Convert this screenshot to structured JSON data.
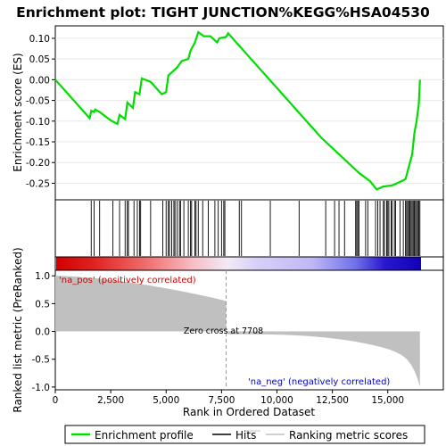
{
  "chart_data": {
    "type": "line",
    "title": "Enrichment plot: TIGHT JUNCTION%KEGG%HSA04530",
    "xlabel": "Rank in Ordered Dataset",
    "ylabel_top": "Enrichment score (ES)",
    "ylabel_bottom": "Ranked list metric (PreRanked)",
    "xlim": [
      0,
      16500
    ],
    "ylim_top": [
      -0.29,
      0.13
    ],
    "ylim_bottom": [
      -1.05,
      1.1
    ],
    "x_ticks": [
      0,
      2500,
      5000,
      7500,
      10000,
      12500,
      15000
    ],
    "x_tick_labels": [
      "0",
      "2,500",
      "5,000",
      "7,500",
      "10,000",
      "12,500",
      "15,000"
    ],
    "y_ticks_top": [
      0.1,
      0.05,
      0.0,
      -0.05,
      -0.1,
      -0.15,
      -0.2,
      -0.25
    ],
    "y_tick_labels_top": [
      "0.10",
      "0.05",
      "0.00",
      "-0.05",
      "-0.10",
      "-0.15",
      "-0.20",
      "-0.25"
    ],
    "y_ticks_bottom": [
      1.0,
      0.5,
      0.0,
      -0.5,
      -1.0
    ],
    "y_tick_labels_bottom": [
      "1.0",
      "0.5",
      "0.0",
      "-0.5",
      "-1.0"
    ],
    "annotations": {
      "pos": "'na_pos' (positively correlated)",
      "neg": "'na_neg' (negatively correlated)",
      "zero_cross": "Zero cross at 7708"
    },
    "zero_cross": 7708,
    "legend": [
      "Enrichment profile",
      "Hits",
      "Ranking metric scores"
    ],
    "legend_position": "bottom",
    "es_profile": [
      [
        0,
        0.0
      ],
      [
        1550,
        -0.093
      ],
      [
        1620,
        -0.075
      ],
      [
        1750,
        -0.078
      ],
      [
        1800,
        -0.072
      ],
      [
        2000,
        -0.078
      ],
      [
        2500,
        -0.098
      ],
      [
        2800,
        -0.107
      ],
      [
        2900,
        -0.085
      ],
      [
        3150,
        -0.095
      ],
      [
        3250,
        -0.055
      ],
      [
        3500,
        -0.068
      ],
      [
        3600,
        -0.03
      ],
      [
        3800,
        -0.035
      ],
      [
        3900,
        0.003
      ],
      [
        4300,
        -0.005
      ],
      [
        4800,
        -0.035
      ],
      [
        5000,
        -0.03
      ],
      [
        5100,
        0.01
      ],
      [
        5300,
        0.02
      ],
      [
        5500,
        0.03
      ],
      [
        5700,
        0.045
      ],
      [
        6000,
        0.05
      ],
      [
        6100,
        0.07
      ],
      [
        6300,
        0.09
      ],
      [
        6450,
        0.115
      ],
      [
        6700,
        0.105
      ],
      [
        7000,
        0.105
      ],
      [
        7300,
        0.09
      ],
      [
        7400,
        0.1
      ],
      [
        7700,
        0.103
      ],
      [
        7800,
        0.112
      ],
      [
        9000,
        0.04
      ],
      [
        10000,
        -0.02
      ],
      [
        11000,
        -0.08
      ],
      [
        12000,
        -0.14
      ],
      [
        13000,
        -0.19
      ],
      [
        13700,
        -0.225
      ],
      [
        14200,
        -0.245
      ],
      [
        14500,
        -0.265
      ],
      [
        14800,
        -0.258
      ],
      [
        15200,
        -0.255
      ],
      [
        15500,
        -0.248
      ],
      [
        15800,
        -0.24
      ],
      [
        16000,
        -0.2
      ],
      [
        16100,
        -0.18
      ],
      [
        16200,
        -0.13
      ],
      [
        16300,
        -0.1
      ],
      [
        16400,
        -0.06
      ],
      [
        16450,
        0.0
      ]
    ],
    "hits": [
      1620,
      1750,
      2000,
      2600,
      2900,
      3150,
      3250,
      3300,
      3550,
      3700,
      3800,
      3850,
      4300,
      4850,
      5000,
      5100,
      5150,
      5250,
      5350,
      5400,
      5500,
      5600,
      5650,
      5800,
      6000,
      6100,
      6150,
      6300,
      6350,
      6450,
      6650,
      6900,
      7200,
      7350,
      7500,
      7600,
      7650,
      8300,
      8400,
      9700,
      11000,
      12200,
      12600,
      12800,
      13050,
      13550,
      13600,
      13650,
      13700,
      14000,
      14100,
      14450,
      14550,
      14650,
      14800,
      14850,
      14950,
      15000,
      15050,
      15150,
      15200,
      15300,
      15350,
      15550,
      15700,
      15800,
      15850,
      15900,
      15950,
      16000,
      16050,
      16100,
      16150,
      16200,
      16250,
      16300,
      16350,
      16400,
      16450
    ]
  }
}
